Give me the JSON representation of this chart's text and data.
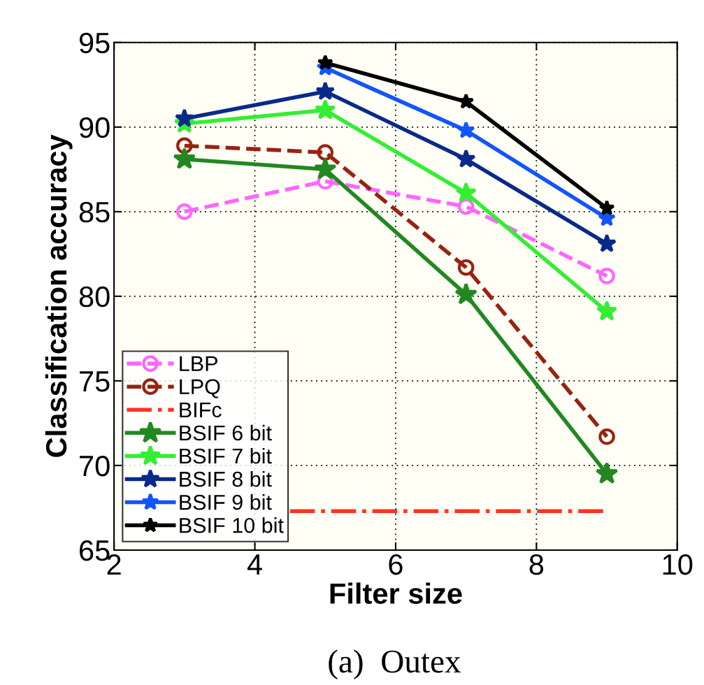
{
  "chart_data": {
    "type": "line",
    "xlabel": "Filter size",
    "ylabel": "Classification accuracy",
    "x": [
      3,
      5,
      7,
      9
    ],
    "xlim": [
      2,
      10
    ],
    "xticks": [
      2,
      4,
      6,
      8,
      10
    ],
    "ylim": [
      65,
      95
    ],
    "yticks": [
      65,
      70,
      75,
      80,
      85,
      90,
      95
    ],
    "grid": true,
    "legend": "bottom left",
    "annotations": [
      "(a)  Outex"
    ],
    "series": [
      {
        "name": "LBP",
        "color": "#ff66ff",
        "values": [
          85.0,
          86.8,
          85.3,
          81.2
        ],
        "line_style": "dashed",
        "marker": "circle"
      },
      {
        "name": "LPQ",
        "color": "#992211",
        "values": [
          88.9,
          88.5,
          81.7,
          71.7
        ],
        "line_style": "dashed",
        "marker": "circle"
      },
      {
        "name": "BIFc",
        "color": "#ff3322",
        "x": [
          4.5,
          9
        ],
        "values": [
          67.3,
          67.3
        ],
        "line_style": "dashdot",
        "marker": "none"
      },
      {
        "name": "BSIF 6 bit",
        "color": "#228822",
        "values": [
          88.1,
          87.5,
          80.1,
          69.5
        ],
        "line_style": "solid",
        "marker": "star"
      },
      {
        "name": "BSIF 7 bit",
        "color": "#33ee33",
        "values": [
          90.2,
          91.0,
          86.1,
          79.1
        ],
        "line_style": "solid",
        "marker": "star"
      },
      {
        "name": "BSIF 8 bit",
        "color": "#0a2a8a",
        "values": [
          90.5,
          92.1,
          88.1,
          83.1
        ],
        "line_style": "solid",
        "marker": "star"
      },
      {
        "name": "BSIF 9 bit",
        "color": "#1155ff",
        "values": [
          null,
          93.5,
          89.8,
          84.6
        ],
        "line_style": "solid",
        "marker": "star"
      },
      {
        "name": "BSIF 10 bit",
        "color": "#000000",
        "values": [
          null,
          93.8,
          91.5,
          85.2
        ],
        "line_style": "solid",
        "marker": "star"
      }
    ]
  }
}
